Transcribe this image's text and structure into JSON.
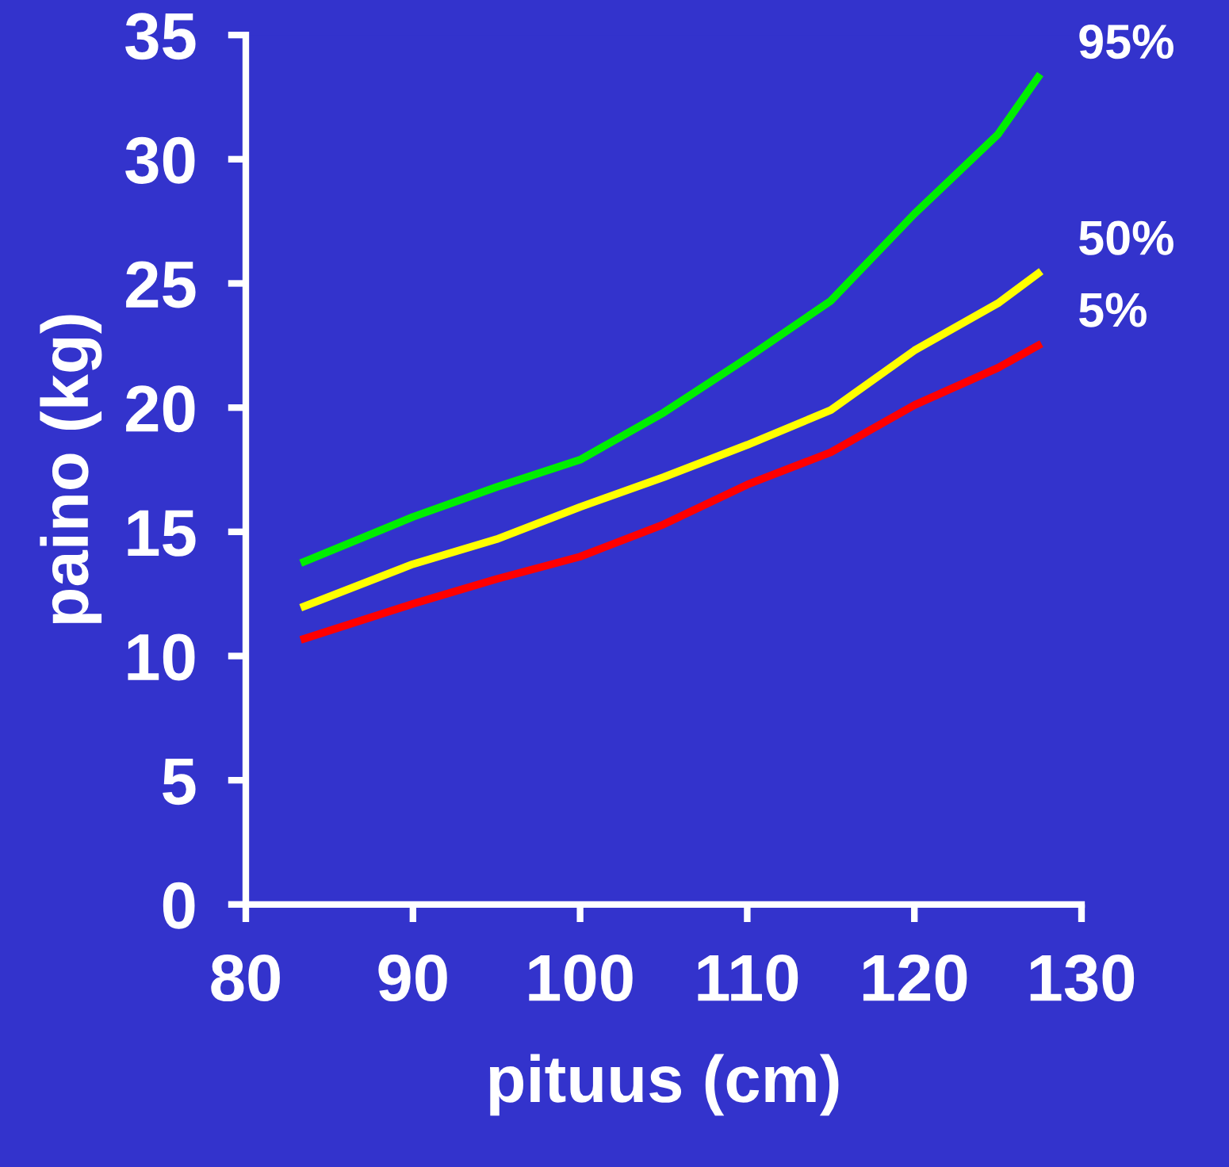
{
  "chart_data": {
    "type": "line",
    "xlabel": "pituus (cm)",
    "ylabel": "paino (kg)",
    "xlim": [
      80,
      130
    ],
    "ylim": [
      0,
      35
    ],
    "xticks": [
      80,
      90,
      100,
      110,
      120,
      130
    ],
    "yticks": [
      0,
      5,
      10,
      15,
      20,
      25,
      30,
      35
    ],
    "grid": false,
    "legend": false,
    "marker": "none",
    "line_style": "solid",
    "series": [
      {
        "name": "95%",
        "color": "#00ee00",
        "x": [
          83.5,
          90,
          95,
          100,
          105,
          110,
          115,
          120,
          125,
          127.4
        ],
        "values": [
          13.8,
          15.6,
          16.8,
          17.9,
          19.8,
          22.0,
          24.3,
          27.8,
          31.0,
          33.3
        ]
      },
      {
        "name": "50%",
        "color": "#ffff00",
        "x": [
          83.5,
          90,
          95,
          100,
          105,
          110,
          115,
          120,
          125,
          127.4
        ],
        "values": [
          12.0,
          13.7,
          14.7,
          16.0,
          17.2,
          18.5,
          19.9,
          22.3,
          24.2,
          25.4
        ]
      },
      {
        "name": "5%",
        "color": "#ff0000",
        "x": [
          83.5,
          90,
          95,
          100,
          105,
          110,
          115,
          120,
          125,
          127.4
        ],
        "values": [
          10.7,
          12.1,
          13.1,
          14.0,
          15.3,
          16.9,
          18.2,
          20.1,
          21.6,
          22.5
        ]
      }
    ]
  }
}
